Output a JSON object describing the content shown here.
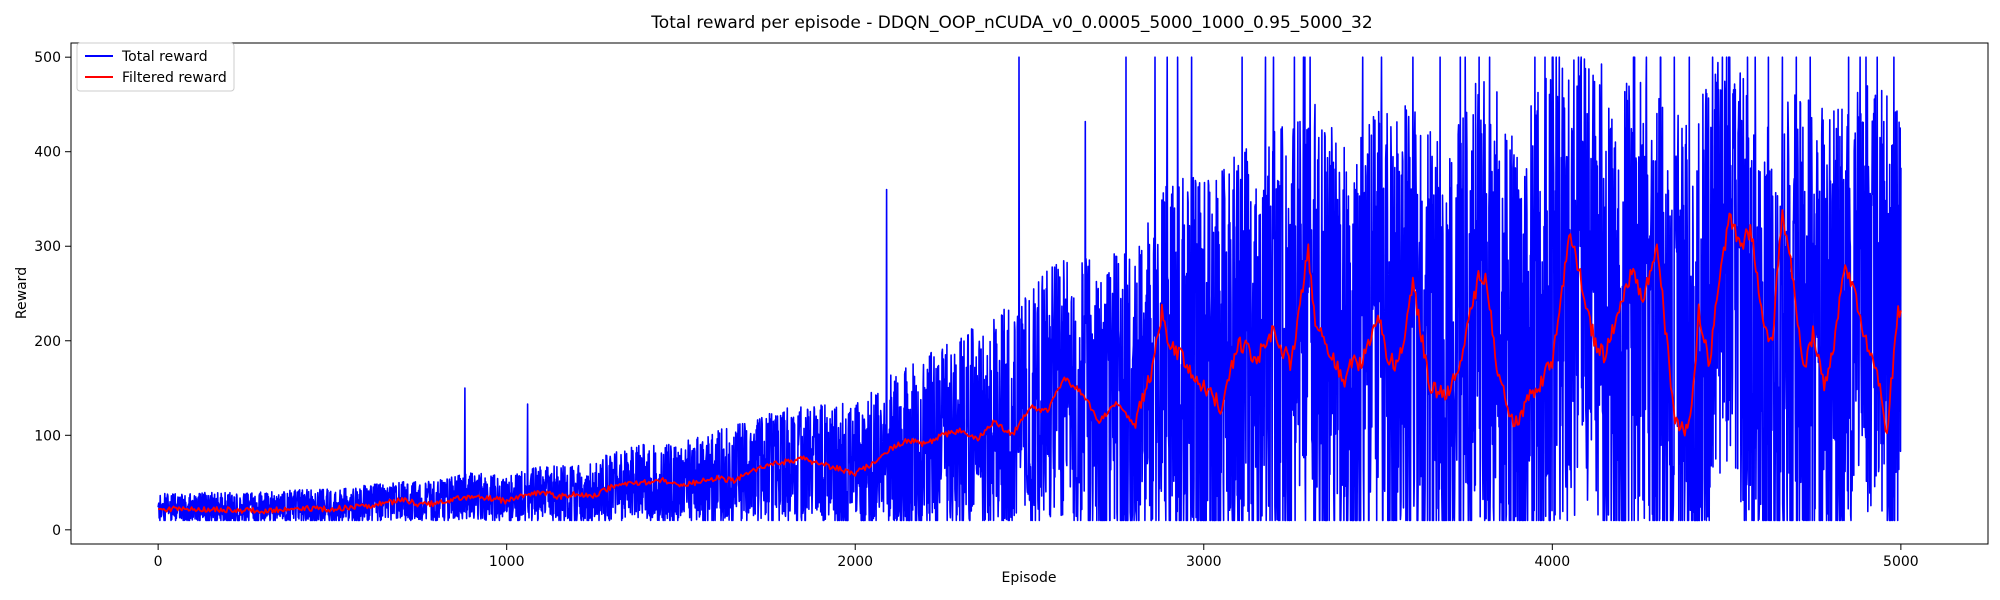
{
  "chart_data": {
    "type": "line",
    "title": "Total reward per episode - DDQN_OOP_nCUDA_v0_0.0005_5000_1000_0.95_5000_32",
    "xlabel": "Episode",
    "ylabel": "Reward",
    "xlim": [
      -250,
      5250
    ],
    "ylim": [
      -15,
      515
    ],
    "xticks": [
      0,
      1000,
      2000,
      3000,
      4000,
      5000
    ],
    "yticks": [
      0,
      100,
      200,
      300,
      400,
      500
    ],
    "legend_position": "top-left",
    "grid": false,
    "series": [
      {
        "name": "Total reward",
        "color": "#0000ff",
        "trend": [
          [
            0,
            22
          ],
          [
            100,
            23
          ],
          [
            200,
            22
          ],
          [
            300,
            22
          ],
          [
            400,
            24
          ],
          [
            500,
            24
          ],
          [
            600,
            27
          ],
          [
            700,
            30
          ],
          [
            800,
            30
          ],
          [
            900,
            36
          ],
          [
            1000,
            32
          ],
          [
            1100,
            38
          ],
          [
            1200,
            37
          ],
          [
            1300,
            45
          ],
          [
            1400,
            50
          ],
          [
            1500,
            48
          ],
          [
            1600,
            55
          ],
          [
            1700,
            60
          ],
          [
            1800,
            68
          ],
          [
            1900,
            70
          ],
          [
            2000,
            62
          ],
          [
            2100,
            80
          ],
          [
            2200,
            90
          ],
          [
            2300,
            100
          ],
          [
            2400,
            110
          ],
          [
            2500,
            125
          ],
          [
            2600,
            150
          ],
          [
            2700,
            125
          ],
          [
            2800,
            130
          ],
          [
            2900,
            175
          ],
          [
            3000,
            150
          ],
          [
            3100,
            170
          ],
          [
            3200,
            190
          ],
          [
            3300,
            220
          ],
          [
            3400,
            165
          ],
          [
            3500,
            190
          ],
          [
            3600,
            190
          ],
          [
            3700,
            140
          ],
          [
            3800,
            235
          ],
          [
            3900,
            145
          ],
          [
            4000,
            240
          ],
          [
            4100,
            235
          ],
          [
            4200,
            215
          ],
          [
            4300,
            215
          ],
          [
            4400,
            170
          ],
          [
            4500,
            290
          ],
          [
            4600,
            165
          ],
          [
            4700,
            215
          ],
          [
            4800,
            200
          ],
          [
            4900,
            230
          ],
          [
            5000,
            215
          ]
        ],
        "spread": [
          [
            0,
            10
          ],
          [
            500,
            12
          ],
          [
            1000,
            16
          ],
          [
            1500,
            28
          ],
          [
            2000,
            45
          ],
          [
            2500,
            80
          ],
          [
            2800,
            110
          ],
          [
            3000,
            140
          ],
          [
            3500,
            160
          ],
          [
            4000,
            170
          ],
          [
            4500,
            160
          ],
          [
            5000,
            150
          ]
        ],
        "clip": [
          10,
          500
        ],
        "spikes": [
          [
            880,
            150
          ],
          [
            1060,
            133
          ],
          [
            2090,
            360
          ],
          [
            2470,
            500
          ],
          [
            2660,
            432
          ],
          [
            2860,
            500
          ],
          [
            2895,
            500
          ],
          [
            2925,
            500
          ],
          [
            2965,
            500
          ],
          [
            3110,
            500
          ],
          [
            3200,
            500
          ],
          [
            3260,
            500
          ],
          [
            3290,
            500
          ],
          [
            3305,
            500
          ],
          [
            3510,
            500
          ],
          [
            3600,
            500
          ],
          [
            3750,
            500
          ],
          [
            3790,
            500
          ],
          [
            3820,
            500
          ],
          [
            3950,
            500
          ],
          [
            4000,
            500
          ],
          [
            4020,
            500
          ],
          [
            4270,
            500
          ],
          [
            4310,
            500
          ],
          [
            4350,
            500
          ],
          [
            4460,
            500
          ],
          [
            4500,
            500
          ],
          [
            4560,
            500
          ],
          [
            4620,
            500
          ],
          [
            4660,
            500
          ],
          [
            4700,
            500
          ],
          [
            4740,
            500
          ],
          [
            4850,
            500
          ],
          [
            4980,
            500
          ]
        ]
      },
      {
        "name": "Filtered reward",
        "color": "#ff0000",
        "points": [
          [
            0,
            20
          ],
          [
            50,
            22
          ],
          [
            100,
            22
          ],
          [
            200,
            21
          ],
          [
            300,
            20
          ],
          [
            400,
            23
          ],
          [
            500,
            22
          ],
          [
            600,
            25
          ],
          [
            650,
            28
          ],
          [
            700,
            32
          ],
          [
            750,
            27
          ],
          [
            800,
            28
          ],
          [
            850,
            32
          ],
          [
            900,
            36
          ],
          [
            950,
            34
          ],
          [
            1000,
            30
          ],
          [
            1050,
            37
          ],
          [
            1100,
            40
          ],
          [
            1150,
            35
          ],
          [
            1200,
            38
          ],
          [
            1250,
            36
          ],
          [
            1300,
            45
          ],
          [
            1350,
            48
          ],
          [
            1400,
            50
          ],
          [
            1450,
            52
          ],
          [
            1500,
            48
          ],
          [
            1550,
            50
          ],
          [
            1600,
            55
          ],
          [
            1650,
            52
          ],
          [
            1700,
            62
          ],
          [
            1750,
            68
          ],
          [
            1800,
            72
          ],
          [
            1850,
            75
          ],
          [
            1900,
            70
          ],
          [
            1950,
            65
          ],
          [
            2000,
            60
          ],
          [
            2050,
            70
          ],
          [
            2100,
            85
          ],
          [
            2150,
            95
          ],
          [
            2200,
            90
          ],
          [
            2250,
            100
          ],
          [
            2300,
            105
          ],
          [
            2350,
            95
          ],
          [
            2400,
            115
          ],
          [
            2450,
            100
          ],
          [
            2500,
            130
          ],
          [
            2550,
            125
          ],
          [
            2600,
            160
          ],
          [
            2650,
            145
          ],
          [
            2700,
            115
          ],
          [
            2750,
            135
          ],
          [
            2800,
            110
          ],
          [
            2850,
            165
          ],
          [
            2880,
            230
          ],
          [
            2900,
            200
          ],
          [
            2950,
            175
          ],
          [
            3000,
            150
          ],
          [
            3050,
            130
          ],
          [
            3100,
            200
          ],
          [
            3150,
            180
          ],
          [
            3200,
            210
          ],
          [
            3250,
            175
          ],
          [
            3300,
            295
          ],
          [
            3320,
            220
          ],
          [
            3350,
            200
          ],
          [
            3400,
            155
          ],
          [
            3430,
            180
          ],
          [
            3450,
            175
          ],
          [
            3500,
            230
          ],
          [
            3530,
            180
          ],
          [
            3560,
            175
          ],
          [
            3600,
            260
          ],
          [
            3650,
            150
          ],
          [
            3700,
            145
          ],
          [
            3730,
            170
          ],
          [
            3760,
            220
          ],
          [
            3790,
            270
          ],
          [
            3810,
            265
          ],
          [
            3840,
            175
          ],
          [
            3870,
            130
          ],
          [
            3900,
            110
          ],
          [
            3930,
            145
          ],
          [
            3960,
            150
          ],
          [
            4000,
            180
          ],
          [
            4030,
            260
          ],
          [
            4050,
            310
          ],
          [
            4080,
            270
          ],
          [
            4100,
            230
          ],
          [
            4130,
            190
          ],
          [
            4150,
            185
          ],
          [
            4200,
            240
          ],
          [
            4230,
            280
          ],
          [
            4260,
            240
          ],
          [
            4300,
            300
          ],
          [
            4330,
            195
          ],
          [
            4350,
            115
          ],
          [
            4380,
            105
          ],
          [
            4400,
            125
          ],
          [
            4420,
            230
          ],
          [
            4450,
            175
          ],
          [
            4480,
            270
          ],
          [
            4510,
            330
          ],
          [
            4540,
            300
          ],
          [
            4570,
            320
          ],
          [
            4600,
            230
          ],
          [
            4630,
            195
          ],
          [
            4660,
            340
          ],
          [
            4690,
            270
          ],
          [
            4720,
            170
          ],
          [
            4750,
            210
          ],
          [
            4780,
            150
          ],
          [
            4810,
            200
          ],
          [
            4840,
            280
          ],
          [
            4870,
            250
          ],
          [
            4900,
            200
          ],
          [
            4940,
            150
          ],
          [
            4960,
            100
          ],
          [
            4990,
            230
          ],
          [
            5000,
            225
          ]
        ]
      }
    ]
  }
}
